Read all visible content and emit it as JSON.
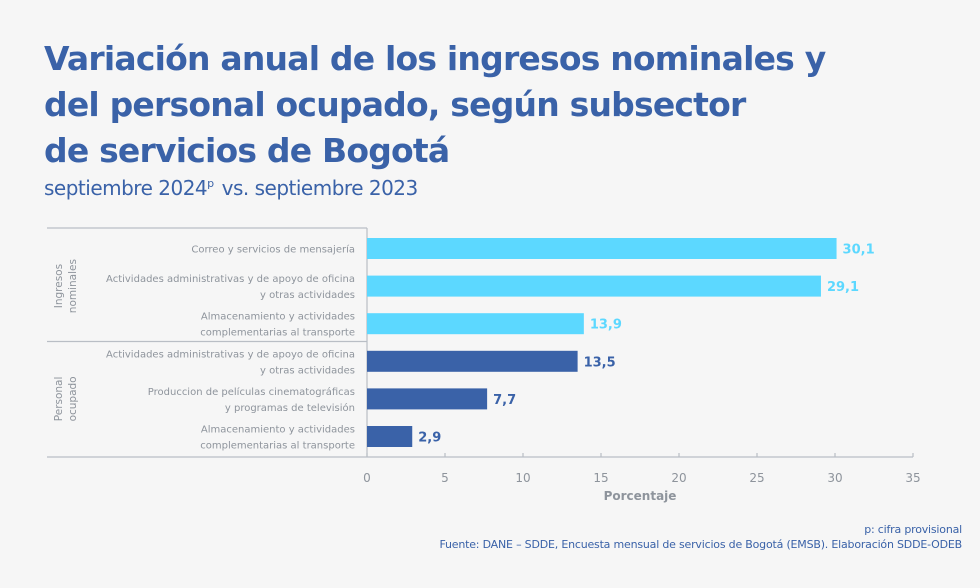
{
  "title_lines": [
    "Variación anual de los ingresos nominales y",
    "del personal ocupado, según subsector",
    "de servicios de Bogotá"
  ],
  "subtitle": {
    "part1": "septiembre 2024",
    "superscript": "p",
    "part2": "vs. septiembre 2023"
  },
  "colors": {
    "ingresos": "#5cd8ff",
    "personal": "#3a62a8",
    "text_gray": "#8e949c",
    "title": "#3a62a8"
  },
  "chart_data": {
    "type": "bar",
    "orientation": "horizontal",
    "title": "Variación anual de los ingresos nominales y del personal ocupado, según subsector de servicios de Bogotá",
    "subtitle": "septiembre 2024p vs. septiembre 2023",
    "xlabel": "Porcentaje",
    "ylabel": "",
    "xlim": [
      0,
      35
    ],
    "xticks": [
      0,
      5,
      10,
      15,
      20,
      25,
      30,
      35
    ],
    "grid": false,
    "groups": [
      {
        "name": "Ingresos nominales",
        "name_lines": [
          "Ingresos",
          "nominales"
        ],
        "color": "#5cd8ff",
        "categories": [
          {
            "lines": [
              "Correo y servicios de mensajería"
            ],
            "value": 30.1,
            "label": "30,1"
          },
          {
            "lines": [
              "Actividades administrativas y de apoyo de oficina",
              "y otras actividades"
            ],
            "value": 29.1,
            "label": "29,1"
          },
          {
            "lines": [
              "Almacenamiento y actividades",
              "complementarias al transporte"
            ],
            "value": 13.9,
            "label": "13,9"
          }
        ]
      },
      {
        "name": "Personal ocupado",
        "name_lines": [
          "Personal",
          "ocupado"
        ],
        "color": "#3a62a8",
        "categories": [
          {
            "lines": [
              "Actividades administrativas y de apoyo de oficina",
              "y otras actividades"
            ],
            "value": 13.5,
            "label": "13,5"
          },
          {
            "lines": [
              "Produccion de películas cinematográficas",
              "y programas de televisión"
            ],
            "value": 7.7,
            "label": "7,7"
          },
          {
            "lines": [
              "Almacenamiento y actividades",
              "complementarias al transporte"
            ],
            "value": 2.9,
            "label": "2,9"
          }
        ]
      }
    ]
  },
  "footer": {
    "footnote": "p: cifra provisional",
    "source": "Fuente: DANE – SDDE, Encuesta mensual de servicios de Bogotá (EMSB). Elaboración SDDE-ODEB"
  }
}
